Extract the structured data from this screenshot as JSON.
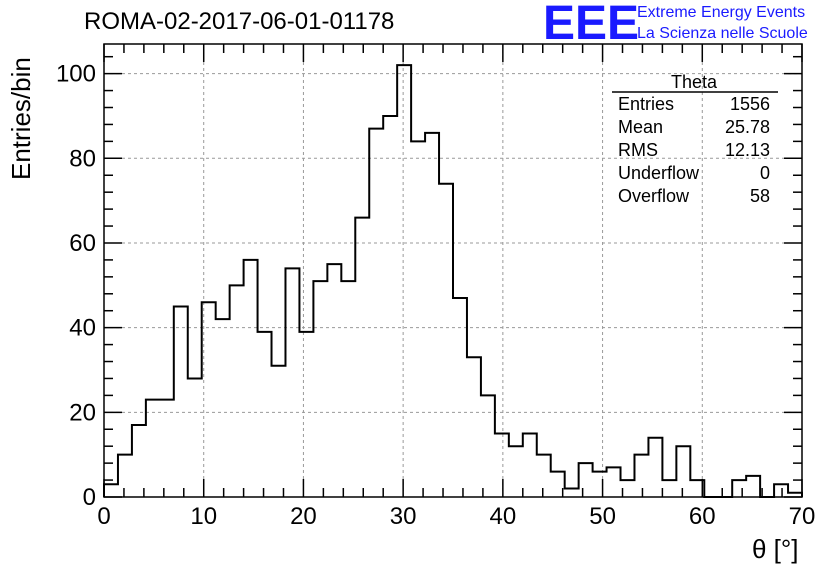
{
  "chart_data": {
    "type": "bar",
    "title": "ROMA-02-2017-06-01-01178",
    "xlabel": "θ [°]",
    "ylabel": "Entries/bin",
    "xlim": [
      0,
      70
    ],
    "ylim": [
      0,
      107
    ],
    "bin_width": 1.4,
    "grid": true,
    "x_ticks": [
      0,
      10,
      20,
      30,
      40,
      50,
      60,
      70
    ],
    "y_ticks": [
      0,
      20,
      40,
      60,
      80,
      100
    ],
    "values": [
      3,
      10,
      17,
      23,
      23,
      45,
      28,
      46,
      42,
      50,
      56,
      39,
      31,
      54,
      39,
      51,
      55,
      51,
      66,
      87,
      90,
      102,
      84,
      86,
      74,
      47,
      33,
      24,
      15,
      12,
      15,
      10,
      6,
      2,
      8,
      6,
      7,
      4,
      10,
      14,
      4,
      12,
      4,
      0,
      0,
      4,
      5,
      0,
      3,
      1
    ],
    "stats": {
      "header": "Theta",
      "rows": [
        {
          "label": "Entries",
          "value": "1556"
        },
        {
          "label": "Mean",
          "value": "25.78"
        },
        {
          "label": "RMS",
          "value": "12.13"
        },
        {
          "label": "Underflow",
          "value": "0"
        },
        {
          "label": "Overflow",
          "value": "58"
        }
      ]
    },
    "logo": {
      "mark": "EEE",
      "line1": "Extreme Energy Events",
      "line2": "La Scienza nelle Scuole",
      "color": "#1a1aff"
    }
  }
}
